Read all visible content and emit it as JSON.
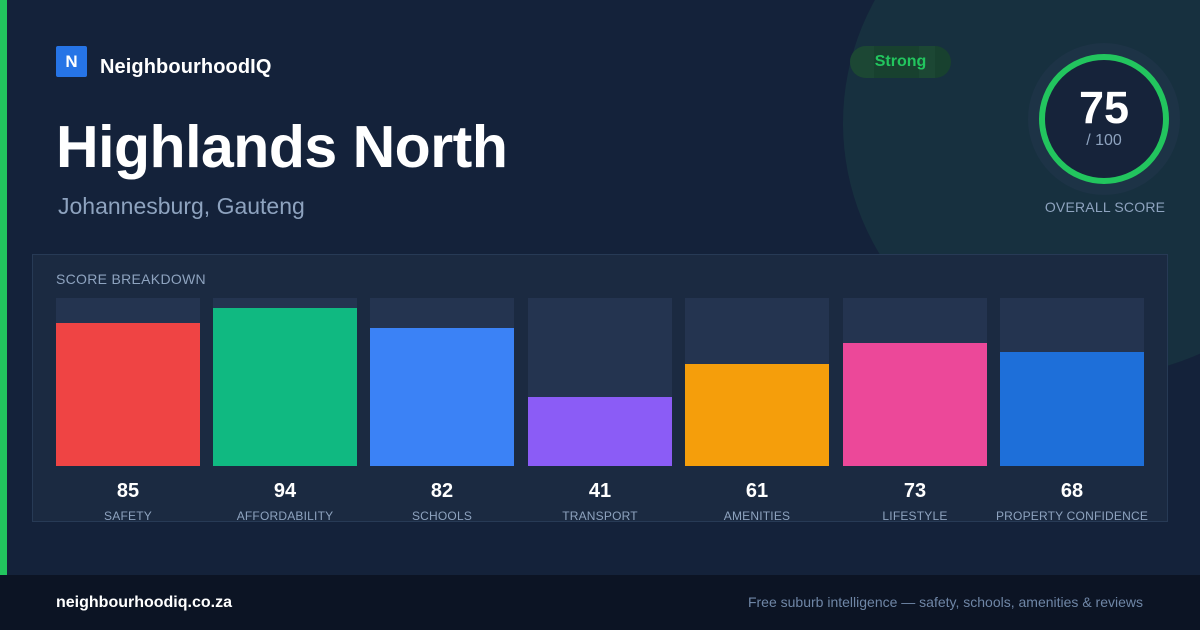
{
  "brand": {
    "logo_letter": "N",
    "name": "NeighbourhoodIQ",
    "accent_color": "#22c55e",
    "logo_color": "#2674e6"
  },
  "header": {
    "title": "Highlands North",
    "subtitle": "Johannesburg, Gauteng"
  },
  "status_badge": {
    "label": "Strong",
    "color": "#22c55e"
  },
  "overall_score": {
    "value": "75",
    "max_label": "/ 100",
    "caption": "OVERALL SCORE",
    "fraction": 0.75,
    "ring_color": "#22c55e"
  },
  "breakdown": {
    "title": "SCORE BREAKDOWN",
    "items": [
      {
        "label": "SAFETY",
        "value": "85",
        "score": 85,
        "color": "#ef4444"
      },
      {
        "label": "AFFORDABILITY",
        "value": "94",
        "score": 94,
        "color": "#10b981"
      },
      {
        "label": "SCHOOLS",
        "value": "82",
        "score": 82,
        "color": "#3b82f6"
      },
      {
        "label": "TRANSPORT",
        "value": "41",
        "score": 41,
        "color": "#8b5cf6"
      },
      {
        "label": "AMENITIES",
        "value": "61",
        "score": 61,
        "color": "#f59e0b"
      },
      {
        "label": "LIFESTYLE",
        "value": "73",
        "score": 73,
        "color": "#ec4899"
      },
      {
        "label": "PROPERTY CONFIDENCE",
        "value": "68",
        "score": 68,
        "color": "#1e6fd9"
      }
    ]
  },
  "footer": {
    "url": "neighbourhoodiq.co.za",
    "tagline": "Free suburb intelligence — safety, schools, amenities & reviews"
  }
}
